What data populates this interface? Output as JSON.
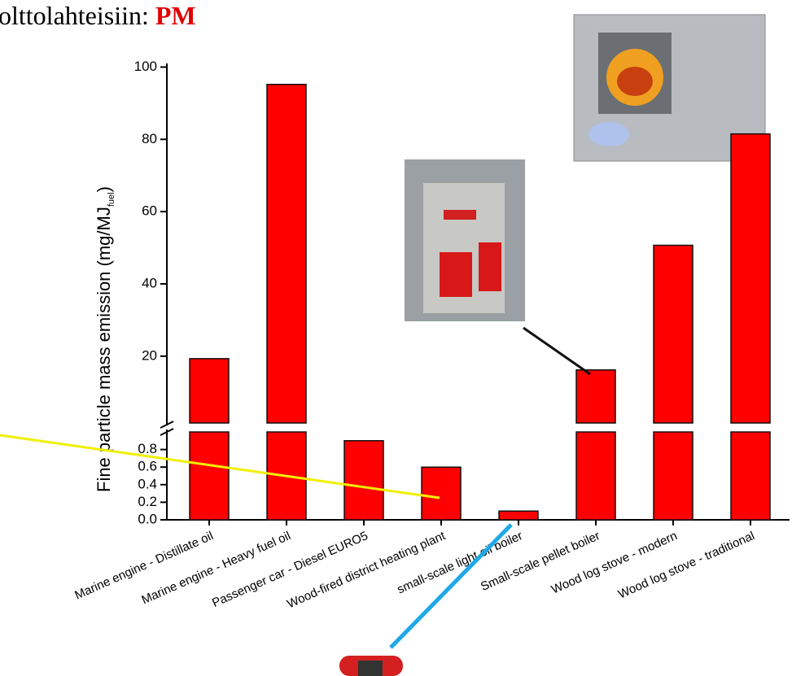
{
  "chart_data": {
    "type": "bar",
    "title": "olttolahteisiin:",
    "title_highlight": "PM",
    "y_label": "Fine particle mass emission (mg/MJ",
    "y_label_sub": "fuel",
    "y_label_end": ")",
    "categories": [
      "Marine engine - Distillate oil",
      "Marine engine - Heavy fuel oil",
      "Passenger car - Diesel EURO5",
      "Wood-fired district heating plant",
      "small-scale light oil boiler",
      "Small-scale pellet boiler",
      "Wood log stove - modern",
      "Wood log stove - traditional"
    ],
    "values": [
      19.3,
      95.2,
      0.9,
      0.6,
      0.1,
      16.2,
      50.7,
      81.5
    ],
    "color": "#ff0000",
    "segments": [
      {
        "ylim": [
          0,
          1
        ],
        "yticks": [
          {
            "value": 0,
            "label": "0.0"
          },
          0.2,
          0.4,
          0.6,
          0.8
        ]
      },
      {
        "ylim": [
          1.5,
          101
        ],
        "yticks": [
          20,
          40,
          60,
          80,
          100
        ]
      }
    ]
  }
}
